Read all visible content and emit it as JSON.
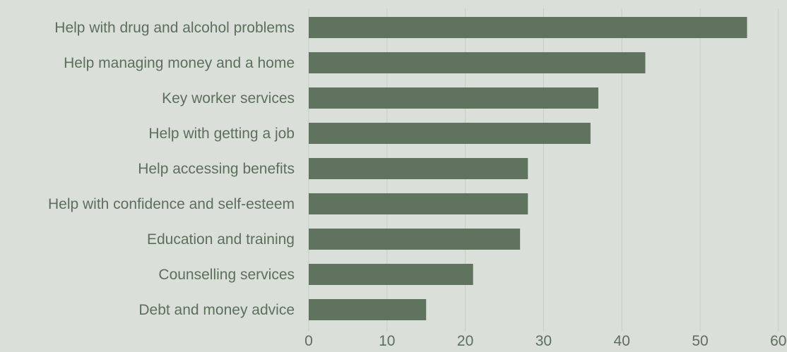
{
  "chart_data": {
    "type": "bar",
    "orientation": "horizontal",
    "title": "",
    "xlabel": "",
    "ylabel": "",
    "categories": [
      "Help with drug and alcohol problems",
      "Help managing money and a home",
      "Key worker services",
      "Help with getting a job",
      "Help accessing benefits",
      "Help with confidence and self-esteem",
      "Education and training",
      "Counselling services",
      "Debt and money advice"
    ],
    "values": [
      56,
      43,
      37,
      36,
      28,
      28,
      27,
      21,
      15
    ],
    "xlim": [
      0,
      60
    ],
    "xticks": [
      "0",
      "10",
      "20",
      "30",
      "40",
      "50",
      "60"
    ],
    "grid": "vertical",
    "legend": "none",
    "colors": {
      "bar": "#5f735e",
      "background": "#dae0d9",
      "grid": "#c3cfc1",
      "text": "#5d6f5c"
    }
  }
}
